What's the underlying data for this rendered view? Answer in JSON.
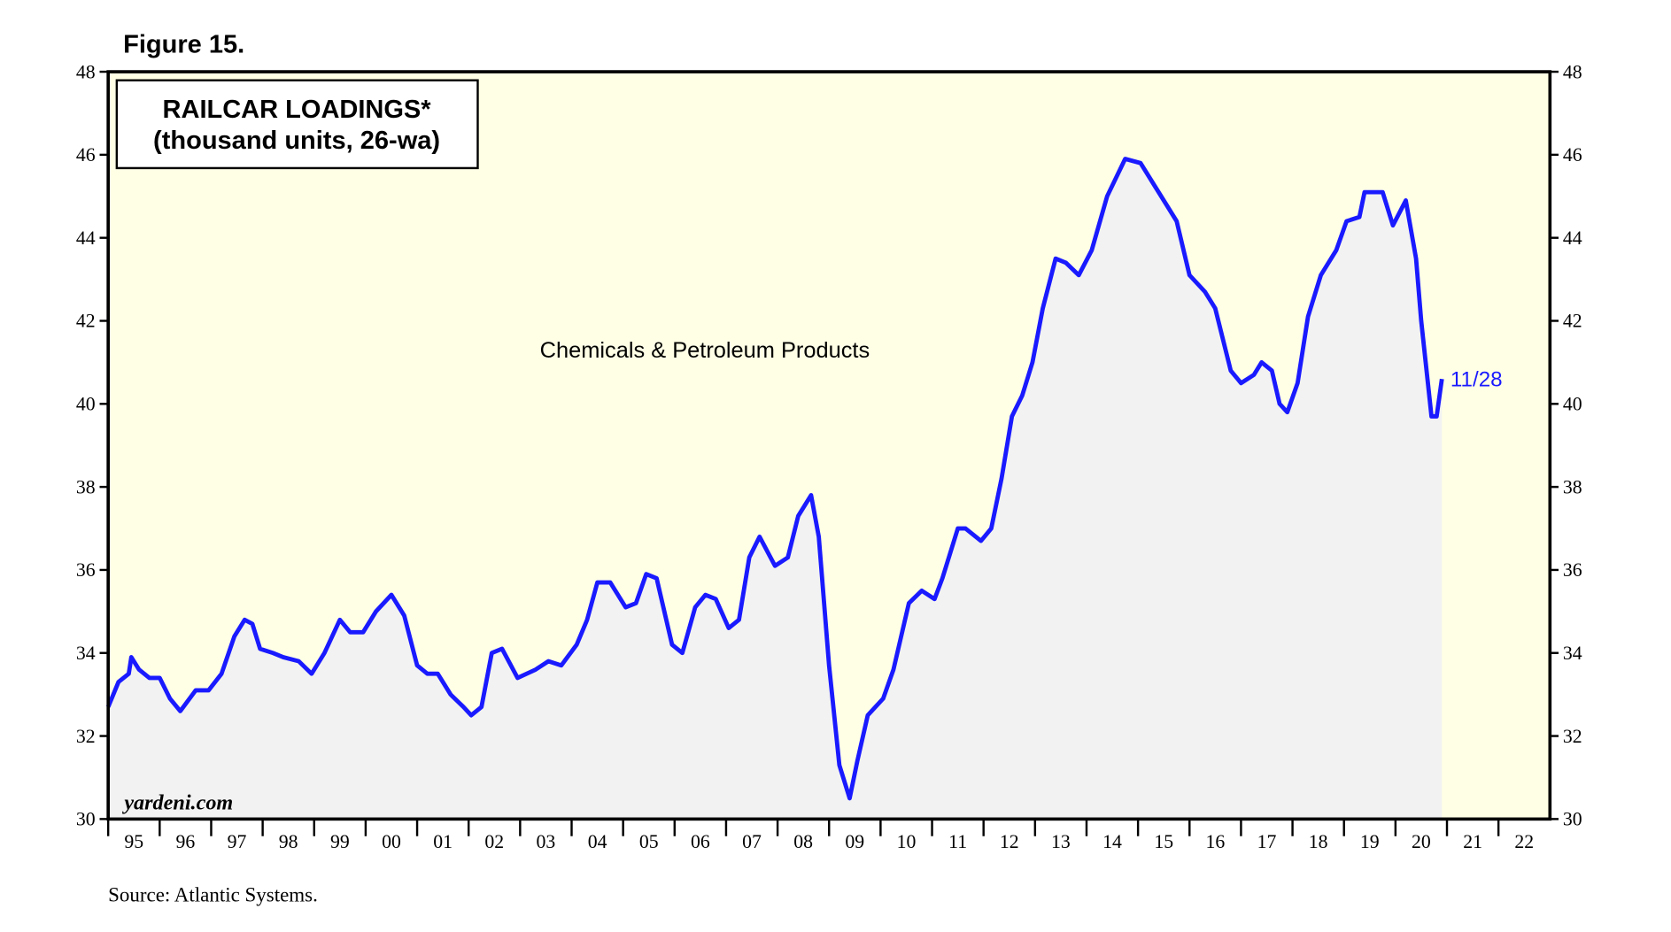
{
  "chart_data": {
    "type": "line",
    "title": "Figure 15.",
    "box_title": [
      "RAILCAR LOADINGS*",
      "(thousand units, 26-wa)"
    ],
    "annotation": "Chemicals & Petroleum Products",
    "end_label": "11/28",
    "watermark": "yardeni.com",
    "source": "Source: Atlantic Systems.",
    "xlim": [
      1995,
      2023
    ],
    "xticks": [
      {
        "value": 1995,
        "label": "95"
      },
      {
        "value": 1996,
        "label": "96"
      },
      {
        "value": 1997,
        "label": "97"
      },
      {
        "value": 1998,
        "label": "98"
      },
      {
        "value": 1999,
        "label": "99"
      },
      {
        "value": 2000,
        "label": "00"
      },
      {
        "value": 2001,
        "label": "01"
      },
      {
        "value": 2002,
        "label": "02"
      },
      {
        "value": 2003,
        "label": "03"
      },
      {
        "value": 2004,
        "label": "04"
      },
      {
        "value": 2005,
        "label": "05"
      },
      {
        "value": 2006,
        "label": "06"
      },
      {
        "value": 2007,
        "label": "07"
      },
      {
        "value": 2008,
        "label": "08"
      },
      {
        "value": 2009,
        "label": "09"
      },
      {
        "value": 2010,
        "label": "10"
      },
      {
        "value": 2011,
        "label": "11"
      },
      {
        "value": 2012,
        "label": "12"
      },
      {
        "value": 2013,
        "label": "13"
      },
      {
        "value": 2014,
        "label": "14"
      },
      {
        "value": 2015,
        "label": "15"
      },
      {
        "value": 2016,
        "label": "16"
      },
      {
        "value": 2017,
        "label": "17"
      },
      {
        "value": 2018,
        "label": "18"
      },
      {
        "value": 2019,
        "label": "19"
      },
      {
        "value": 2020,
        "label": "20"
      },
      {
        "value": 2021,
        "label": "21"
      },
      {
        "value": 2022,
        "label": "22"
      }
    ],
    "ylim": [
      30,
      48
    ],
    "yticks": [
      30,
      32,
      34,
      36,
      38,
      40,
      42,
      44,
      46,
      48
    ],
    "y2lim": [
      30,
      48
    ],
    "y2ticks": [
      30,
      32,
      34,
      36,
      38,
      40,
      42,
      44,
      46,
      48
    ],
    "background": "#ffffe6",
    "area_color": "#f2f2f2",
    "series": [
      {
        "name": "Chemicals & Petroleum Products",
        "color": "#1a1aff",
        "x": [
          1995.0,
          1995.2,
          1995.4,
          1995.45,
          1995.6,
          1995.8,
          1996.0,
          1996.2,
          1996.4,
          1996.7,
          1996.95,
          1997.2,
          1997.45,
          1997.65,
          1997.8,
          1997.95,
          1998.2,
          1998.4,
          1998.7,
          1998.95,
          1999.2,
          1999.5,
          1999.7,
          1999.95,
          2000.2,
          2000.5,
          2000.75,
          2001.0,
          2001.2,
          2001.4,
          2001.65,
          2001.9,
          2002.05,
          2002.25,
          2002.45,
          2002.65,
          2002.95,
          2003.3,
          2003.55,
          2003.8,
          2004.1,
          2004.3,
          2004.5,
          2004.75,
          2005.05,
          2005.25,
          2005.45,
          2005.65,
          2005.95,
          2006.15,
          2006.4,
          2006.6,
          2006.8,
          2007.05,
          2007.25,
          2007.45,
          2007.65,
          2007.95,
          2008.2,
          2008.4,
          2008.65,
          2008.8,
          2009.0,
          2009.2,
          2009.4,
          2009.55,
          2009.75,
          2010.05,
          2010.25,
          2010.55,
          2010.8,
          2011.05,
          2011.2,
          2011.5,
          2011.65,
          2011.95,
          2012.15,
          2012.35,
          2012.55,
          2012.75,
          2012.95,
          2013.15,
          2013.4,
          2013.6,
          2013.85,
          2014.1,
          2014.4,
          2014.75,
          2015.05,
          2015.3,
          2015.55,
          2015.75,
          2016.0,
          2016.3,
          2016.5,
          2016.8,
          2017.0,
          2017.25,
          2017.4,
          2017.6,
          2017.75,
          2017.9,
          2018.1,
          2018.3,
          2018.55,
          2018.85,
          2019.05,
          2019.3,
          2019.4,
          2019.75,
          2019.95,
          2020.2,
          2020.4,
          2020.5,
          2020.7,
          2020.8,
          2020.9
        ],
        "values": [
          32.7,
          33.3,
          33.5,
          33.9,
          33.6,
          33.4,
          33.4,
          32.9,
          32.6,
          33.1,
          33.1,
          33.5,
          34.4,
          34.8,
          34.7,
          34.1,
          34.0,
          33.9,
          33.8,
          33.5,
          34.0,
          34.8,
          34.5,
          34.5,
          35.0,
          35.4,
          34.9,
          33.7,
          33.5,
          33.5,
          33.0,
          32.7,
          32.5,
          32.7,
          34.0,
          34.1,
          33.4,
          33.6,
          33.8,
          33.7,
          34.2,
          34.8,
          35.7,
          35.7,
          35.1,
          35.2,
          35.9,
          35.8,
          34.2,
          34.0,
          35.1,
          35.4,
          35.3,
          34.6,
          34.8,
          36.3,
          36.8,
          36.1,
          36.3,
          37.3,
          37.8,
          36.8,
          33.7,
          31.3,
          30.5,
          31.4,
          32.5,
          32.9,
          33.6,
          35.2,
          35.5,
          35.3,
          35.8,
          37.0,
          37.0,
          36.7,
          37.0,
          38.2,
          39.7,
          40.2,
          41.0,
          42.3,
          43.5,
          43.4,
          43.1,
          43.7,
          45.0,
          45.9,
          45.8,
          45.3,
          44.8,
          44.4,
          43.1,
          42.7,
          42.3,
          40.8,
          40.5,
          40.7,
          41.0,
          40.8,
          40.0,
          39.8,
          40.5,
          42.1,
          43.1,
          43.7,
          44.4,
          44.5,
          45.1,
          45.1,
          44.3,
          44.9,
          43.5,
          42.0,
          39.7,
          39.7,
          40.6
        ]
      }
    ]
  }
}
